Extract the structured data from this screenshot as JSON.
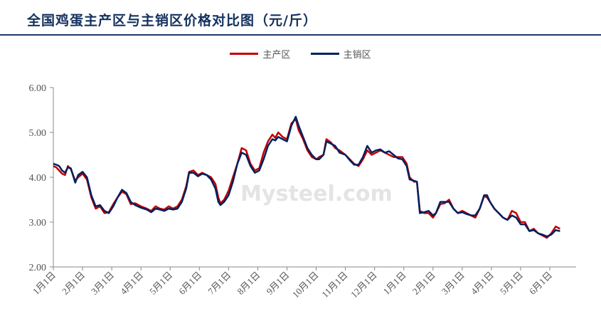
{
  "chart_data": {
    "type": "line",
    "title": "全国鸡蛋主产区与主销区价格对比图（元/斤）",
    "xlabel": "",
    "ylabel": "",
    "ylim": [
      2.0,
      6.0
    ],
    "yticks": [
      "2.00",
      "3.00",
      "4.00",
      "5.00",
      "6.00"
    ],
    "xticks": [
      "1月1日",
      "2月1日",
      "3月1日",
      "4月1日",
      "5月1日",
      "6月1日",
      "7月1日",
      "8月1日",
      "9月1日",
      "10月1日",
      "11月1日",
      "12月1日",
      "1月1日",
      "2月1日",
      "3月1日",
      "4月1日",
      "5月1日",
      "6月1日"
    ],
    "x_range": [
      0,
      17.9
    ],
    "grid": false,
    "legend_position": "top-center",
    "watermark": "Mysteel.com",
    "series": [
      {
        "name": "主产区",
        "color": "#c00000",
        "points": [
          [
            0,
            4.25
          ],
          [
            0.1,
            4.22
          ],
          [
            0.2,
            4.15
          ],
          [
            0.3,
            4.08
          ],
          [
            0.4,
            4.05
          ],
          [
            0.5,
            4.25
          ],
          [
            0.6,
            4.18
          ],
          [
            0.75,
            3.92
          ],
          [
            0.85,
            4.0
          ],
          [
            1.0,
            4.08
          ],
          [
            1.15,
            3.95
          ],
          [
            1.3,
            3.55
          ],
          [
            1.45,
            3.3
          ],
          [
            1.6,
            3.35
          ],
          [
            1.75,
            3.2
          ],
          [
            1.9,
            3.22
          ],
          [
            2.05,
            3.4
          ],
          [
            2.2,
            3.55
          ],
          [
            2.35,
            3.68
          ],
          [
            2.5,
            3.62
          ],
          [
            2.65,
            3.4
          ],
          [
            2.8,
            3.42
          ],
          [
            3.0,
            3.35
          ],
          [
            3.2,
            3.3
          ],
          [
            3.35,
            3.25
          ],
          [
            3.5,
            3.35
          ],
          [
            3.65,
            3.3
          ],
          [
            3.8,
            3.28
          ],
          [
            3.95,
            3.35
          ],
          [
            4.1,
            3.3
          ],
          [
            4.25,
            3.35
          ],
          [
            4.4,
            3.5
          ],
          [
            4.55,
            3.8
          ],
          [
            4.65,
            4.12
          ],
          [
            4.8,
            4.15
          ],
          [
            4.95,
            4.05
          ],
          [
            5.1,
            4.1
          ],
          [
            5.25,
            4.05
          ],
          [
            5.4,
            4.0
          ],
          [
            5.55,
            3.85
          ],
          [
            5.65,
            3.55
          ],
          [
            5.72,
            3.42
          ],
          [
            5.85,
            3.5
          ],
          [
            6.0,
            3.7
          ],
          [
            6.15,
            4.0
          ],
          [
            6.3,
            4.3
          ],
          [
            6.45,
            4.65
          ],
          [
            6.6,
            4.6
          ],
          [
            6.75,
            4.3
          ],
          [
            6.9,
            4.15
          ],
          [
            7.05,
            4.2
          ],
          [
            7.2,
            4.55
          ],
          [
            7.35,
            4.8
          ],
          [
            7.5,
            4.95
          ],
          [
            7.6,
            4.88
          ],
          [
            7.7,
            5.0
          ],
          [
            7.85,
            4.9
          ],
          [
            8.0,
            4.85
          ],
          [
            8.15,
            5.2
          ],
          [
            8.3,
            5.3
          ],
          [
            8.4,
            5.05
          ],
          [
            8.55,
            4.85
          ],
          [
            8.7,
            4.6
          ],
          [
            8.85,
            4.45
          ],
          [
            9.0,
            4.4
          ],
          [
            9.1,
            4.45
          ],
          [
            9.25,
            4.5
          ],
          [
            9.35,
            4.85
          ],
          [
            9.5,
            4.78
          ],
          [
            9.65,
            4.65
          ],
          [
            9.8,
            4.6
          ],
          [
            10.0,
            4.5
          ],
          [
            10.15,
            4.4
          ],
          [
            10.3,
            4.3
          ],
          [
            10.45,
            4.25
          ],
          [
            10.6,
            4.4
          ],
          [
            10.75,
            4.6
          ],
          [
            10.9,
            4.5
          ],
          [
            11.05,
            4.55
          ],
          [
            11.2,
            4.6
          ],
          [
            11.35,
            4.55
          ],
          [
            11.5,
            4.5
          ],
          [
            11.65,
            4.45
          ],
          [
            11.8,
            4.45
          ],
          [
            11.95,
            4.45
          ],
          [
            12.1,
            4.3
          ],
          [
            12.2,
            4.0
          ],
          [
            12.35,
            3.9
          ],
          [
            12.45,
            3.9
          ],
          [
            12.55,
            3.25
          ],
          [
            12.7,
            3.2
          ],
          [
            12.85,
            3.2
          ],
          [
            13.0,
            3.1
          ],
          [
            13.1,
            3.2
          ],
          [
            13.25,
            3.4
          ],
          [
            13.4,
            3.42
          ],
          [
            13.55,
            3.5
          ],
          [
            13.7,
            3.3
          ],
          [
            13.85,
            3.2
          ],
          [
            14.0,
            3.25
          ],
          [
            14.15,
            3.2
          ],
          [
            14.3,
            3.15
          ],
          [
            14.45,
            3.1
          ],
          [
            14.6,
            3.3
          ],
          [
            14.75,
            3.58
          ],
          [
            14.85,
            3.55
          ],
          [
            14.95,
            3.45
          ],
          [
            15.1,
            3.3
          ],
          [
            15.25,
            3.2
          ],
          [
            15.4,
            3.1
          ],
          [
            15.55,
            3.05
          ],
          [
            15.7,
            3.25
          ],
          [
            15.85,
            3.2
          ],
          [
            16.0,
            3.0
          ],
          [
            16.15,
            3.0
          ],
          [
            16.3,
            2.8
          ],
          [
            16.45,
            2.85
          ],
          [
            16.6,
            2.75
          ],
          [
            16.75,
            2.7
          ],
          [
            16.9,
            2.65
          ],
          [
            17.05,
            2.75
          ],
          [
            17.2,
            2.9
          ],
          [
            17.35,
            2.85
          ]
        ]
      },
      {
        "name": "主销区",
        "color": "#002060",
        "points": [
          [
            0,
            4.3
          ],
          [
            0.1,
            4.28
          ],
          [
            0.2,
            4.25
          ],
          [
            0.3,
            4.15
          ],
          [
            0.4,
            4.1
          ],
          [
            0.5,
            4.22
          ],
          [
            0.6,
            4.2
          ],
          [
            0.75,
            3.88
          ],
          [
            0.85,
            4.05
          ],
          [
            1.0,
            4.12
          ],
          [
            1.15,
            4.0
          ],
          [
            1.3,
            3.6
          ],
          [
            1.45,
            3.35
          ],
          [
            1.6,
            3.38
          ],
          [
            1.75,
            3.25
          ],
          [
            1.9,
            3.2
          ],
          [
            2.05,
            3.35
          ],
          [
            2.2,
            3.55
          ],
          [
            2.35,
            3.72
          ],
          [
            2.5,
            3.65
          ],
          [
            2.65,
            3.45
          ],
          [
            2.8,
            3.38
          ],
          [
            3.0,
            3.32
          ],
          [
            3.2,
            3.28
          ],
          [
            3.35,
            3.22
          ],
          [
            3.5,
            3.3
          ],
          [
            3.65,
            3.28
          ],
          [
            3.8,
            3.25
          ],
          [
            3.95,
            3.3
          ],
          [
            4.1,
            3.28
          ],
          [
            4.25,
            3.3
          ],
          [
            4.4,
            3.45
          ],
          [
            4.55,
            3.75
          ],
          [
            4.65,
            4.1
          ],
          [
            4.8,
            4.1
          ],
          [
            4.95,
            4.02
          ],
          [
            5.1,
            4.08
          ],
          [
            5.25,
            4.05
          ],
          [
            5.4,
            3.95
          ],
          [
            5.55,
            3.75
          ],
          [
            5.65,
            3.45
          ],
          [
            5.72,
            3.38
          ],
          [
            5.85,
            3.45
          ],
          [
            6.0,
            3.6
          ],
          [
            6.15,
            3.9
          ],
          [
            6.3,
            4.3
          ],
          [
            6.45,
            4.55
          ],
          [
            6.6,
            4.5
          ],
          [
            6.75,
            4.25
          ],
          [
            6.9,
            4.1
          ],
          [
            7.05,
            4.15
          ],
          [
            7.2,
            4.4
          ],
          [
            7.35,
            4.7
          ],
          [
            7.5,
            4.85
          ],
          [
            7.6,
            4.82
          ],
          [
            7.7,
            4.9
          ],
          [
            7.85,
            4.85
          ],
          [
            8.0,
            4.8
          ],
          [
            8.15,
            5.15
          ],
          [
            8.3,
            5.35
          ],
          [
            8.4,
            5.15
          ],
          [
            8.55,
            4.9
          ],
          [
            8.7,
            4.65
          ],
          [
            8.85,
            4.5
          ],
          [
            9.0,
            4.4
          ],
          [
            9.1,
            4.4
          ],
          [
            9.25,
            4.5
          ],
          [
            9.35,
            4.8
          ],
          [
            9.5,
            4.75
          ],
          [
            9.65,
            4.7
          ],
          [
            9.8,
            4.55
          ],
          [
            10.0,
            4.5
          ],
          [
            10.15,
            4.38
          ],
          [
            10.3,
            4.28
          ],
          [
            10.45,
            4.28
          ],
          [
            10.6,
            4.45
          ],
          [
            10.75,
            4.7
          ],
          [
            10.9,
            4.55
          ],
          [
            11.05,
            4.6
          ],
          [
            11.2,
            4.62
          ],
          [
            11.35,
            4.55
          ],
          [
            11.5,
            4.58
          ],
          [
            11.65,
            4.5
          ],
          [
            11.8,
            4.42
          ],
          [
            11.95,
            4.4
          ],
          [
            12.1,
            4.25
          ],
          [
            12.2,
            3.95
          ],
          [
            12.35,
            3.92
          ],
          [
            12.45,
            3.9
          ],
          [
            12.55,
            3.2
          ],
          [
            12.7,
            3.22
          ],
          [
            12.85,
            3.25
          ],
          [
            13.0,
            3.15
          ],
          [
            13.1,
            3.2
          ],
          [
            13.25,
            3.45
          ],
          [
            13.4,
            3.45
          ],
          [
            13.55,
            3.45
          ],
          [
            13.7,
            3.3
          ],
          [
            13.85,
            3.2
          ],
          [
            14.0,
            3.22
          ],
          [
            14.15,
            3.18
          ],
          [
            14.3,
            3.15
          ],
          [
            14.45,
            3.15
          ],
          [
            14.6,
            3.3
          ],
          [
            14.75,
            3.6
          ],
          [
            14.85,
            3.6
          ],
          [
            14.95,
            3.45
          ],
          [
            15.1,
            3.3
          ],
          [
            15.25,
            3.2
          ],
          [
            15.4,
            3.1
          ],
          [
            15.55,
            3.05
          ],
          [
            15.7,
            3.15
          ],
          [
            15.85,
            3.1
          ],
          [
            16.0,
            2.95
          ],
          [
            16.15,
            2.95
          ],
          [
            16.3,
            2.8
          ],
          [
            16.45,
            2.82
          ],
          [
            16.6,
            2.75
          ],
          [
            16.75,
            2.72
          ],
          [
            16.9,
            2.68
          ],
          [
            17.05,
            2.72
          ],
          [
            17.2,
            2.82
          ],
          [
            17.35,
            2.8
          ]
        ]
      }
    ]
  }
}
